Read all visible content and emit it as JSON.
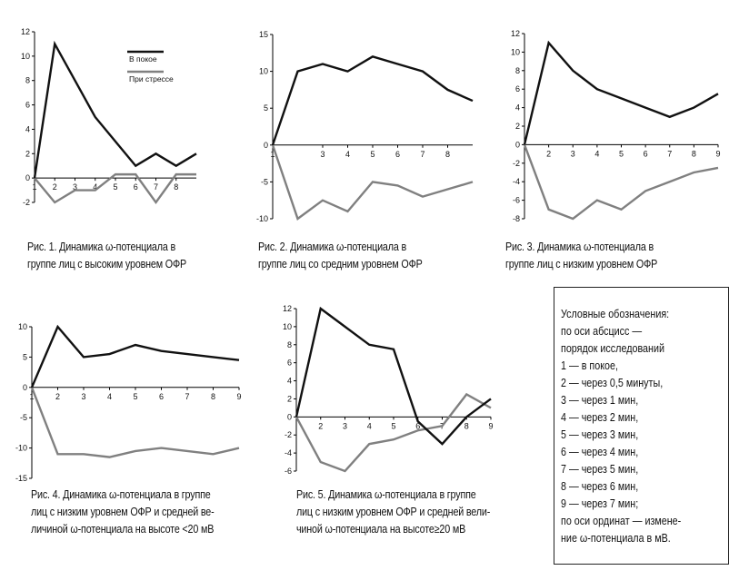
{
  "colors": {
    "rest": "#111111",
    "stress": "#808080",
    "axis": "#000000"
  },
  "chart_data": [
    {
      "type": "line",
      "x": [
        1,
        2,
        3,
        4,
        5,
        6,
        7,
        8,
        9
      ],
      "xticks": [
        "1",
        "2",
        "3",
        "4",
        "5",
        "6",
        "7",
        "8"
      ],
      "yticks": [
        -2,
        0,
        2,
        4,
        6,
        8,
        10,
        12
      ],
      "ylim": [
        -2,
        12
      ],
      "legend": [
        "В покое",
        "При стрессе"
      ],
      "series": [
        {
          "name": "В покое",
          "values": [
            0,
            11,
            8,
            5,
            3,
            1,
            2,
            1,
            2
          ]
        },
        {
          "name": "При стрессе",
          "values": [
            0,
            -2,
            -1,
            -1,
            0.3,
            0.3,
            -2,
            0.3,
            0.3
          ]
        }
      ],
      "caption": "Рис. 1. Динамика ω-потенциала в\nгруппе лиц с высоким уровнем ОФР"
    },
    {
      "type": "line",
      "x": [
        1,
        2,
        3,
        4,
        5,
        6,
        7,
        8,
        9
      ],
      "xticks": [
        "1",
        "3",
        "4",
        "5",
        "6",
        "7",
        "8"
      ],
      "yticks": [
        -10,
        -5,
        0,
        5,
        10,
        15
      ],
      "ylim": [
        -10,
        15
      ],
      "series": [
        {
          "values": [
            0,
            10,
            11,
            10,
            12,
            11,
            10,
            7.5,
            6
          ]
        },
        {
          "values": [
            0,
            -10,
            -7.5,
            -9,
            -5,
            -5.5,
            -7,
            -6,
            -5
          ]
        }
      ],
      "caption": "Рис. 2. Динамика ω-потенциала в\nгруппе лиц со средним уровнем ОФР"
    },
    {
      "type": "line",
      "x": [
        1,
        2,
        3,
        4,
        5,
        6,
        7,
        8,
        9
      ],
      "xticks": [
        "2",
        "3",
        "4",
        "5",
        "6",
        "7",
        "8",
        "9"
      ],
      "yticks": [
        -8,
        -6,
        -4,
        -2,
        0,
        2,
        4,
        6,
        8,
        10,
        12
      ],
      "ylim": [
        -8,
        12
      ],
      "series": [
        {
          "values": [
            0,
            11,
            8,
            6,
            5,
            4,
            3,
            4,
            5.5
          ]
        },
        {
          "values": [
            0,
            -7,
            -8,
            -6,
            -7,
            -5,
            -4,
            -3,
            -2.5
          ]
        }
      ],
      "caption": "Рис. 3. Динамика ω-потенциала в\nгруппе лиц с низким уровнем ОФР"
    },
    {
      "type": "line",
      "x": [
        1,
        2,
        3,
        4,
        5,
        6,
        7,
        8,
        9
      ],
      "xticks": [
        "1",
        "2",
        "3",
        "4",
        "5",
        "6",
        "7",
        "8",
        "9"
      ],
      "yticks": [
        -15,
        -10,
        -5,
        0,
        5,
        10
      ],
      "ylim": [
        -15,
        10
      ],
      "series": [
        {
          "values": [
            0,
            10,
            5,
            5.5,
            7,
            6,
            5.5,
            5,
            4.5
          ]
        },
        {
          "values": [
            0,
            -11,
            -11,
            -11.5,
            -10.5,
            -10,
            -10.5,
            -11,
            -10
          ]
        }
      ],
      "caption": "Рис. 4. Динамика ω-потенциала в группе\nлиц с низким уровнем ОФР и средней ве-\nличиной ω-потенциала на высоте <20 мВ"
    },
    {
      "type": "line",
      "x": [
        1,
        2,
        3,
        4,
        5,
        6,
        7,
        8,
        9
      ],
      "xticks": [
        "2",
        "3",
        "4",
        "5",
        "6",
        "7",
        "8",
        "9"
      ],
      "yticks": [
        -6,
        -4,
        -2,
        0,
        2,
        4,
        6,
        8,
        10,
        12
      ],
      "ylim": [
        -6,
        12
      ],
      "series": [
        {
          "values": [
            0,
            12,
            10,
            8,
            7.5,
            -0.5,
            -3,
            0,
            2
          ]
        },
        {
          "values": [
            0,
            -5,
            -6,
            -3,
            -2.5,
            -1.5,
            -1,
            2.5,
            1
          ]
        }
      ],
      "caption": "Рис. 5. Динамика ω-потенциала в группе\nлиц с низким уровнем ОФР и средней вели-\nчиной ω-потенциала на высоте≥20 мВ"
    }
  ],
  "legend_box": {
    "lines": [
      "Условные обозначения:",
      "по оси абсцисс —",
      "порядок исследований",
      "1 — в покое,",
      "2 — через 0,5 минуты,",
      "3 — через 1 мин,",
      "4 — через 2 мин,",
      "5 — через 3 мин,",
      "6 — через 4 мин,",
      "7 — через 5 мин,",
      "8 — через 6 мин,",
      "9 — через 7 мин;",
      "по оси ординат — измене-",
      "ние  ω-потенциала в мВ."
    ]
  }
}
